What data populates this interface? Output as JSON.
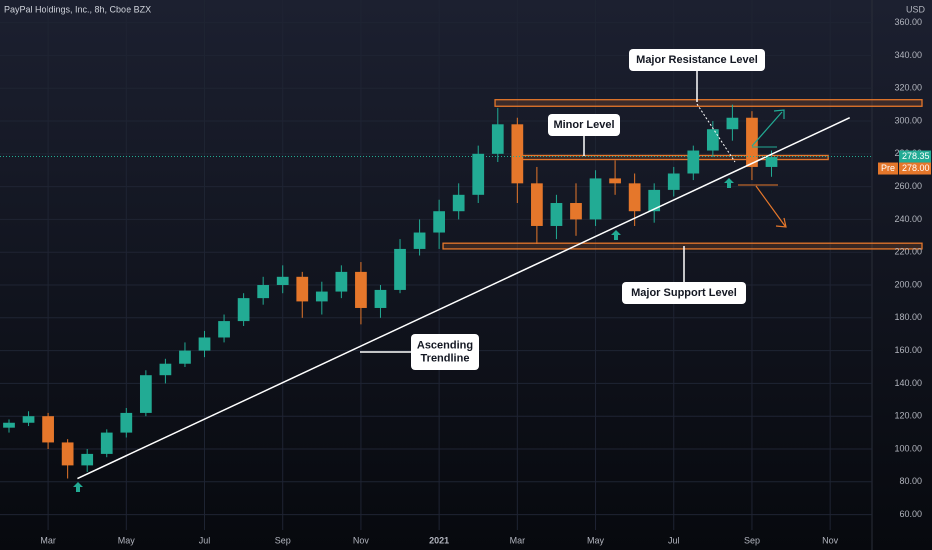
{
  "chart_data": {
    "type": "candlestick",
    "title": "PayPal Holdings, Inc., 8h, Cboe BZX",
    "y_unit": "USD",
    "x": [
      2.0,
      2.5,
      3.0,
      3.5,
      4.0,
      4.5,
      5.0,
      5.5,
      6.0,
      6.5,
      7.0,
      7.5,
      8.0,
      8.5,
      9.0,
      9.5,
      10.0,
      10.5,
      11.0,
      11.5,
      12.0,
      12.5,
      13.0,
      13.5,
      14.0,
      14.5,
      15.0,
      15.5,
      16.0,
      16.5,
      17.0,
      17.5,
      18.0,
      18.5,
      19.0,
      19.5,
      20.0,
      20.5,
      21.0,
      21.5
    ],
    "open": [
      113,
      116,
      120,
      104,
      90,
      97,
      110,
      122,
      145,
      152,
      160,
      168,
      178,
      192,
      200,
      205,
      190,
      196,
      208,
      186,
      197,
      222,
      232,
      245,
      255,
      280,
      298,
      262,
      236,
      250,
      240,
      265,
      262,
      245,
      258,
      268,
      282,
      295,
      302,
      272
    ],
    "high": [
      118,
      123,
      122,
      106,
      100,
      112,
      125,
      148,
      155,
      165,
      172,
      182,
      195,
      205,
      212,
      208,
      202,
      212,
      214,
      200,
      228,
      240,
      252,
      262,
      285,
      308,
      302,
      272,
      255,
      262,
      270,
      276,
      268,
      262,
      272,
      285,
      300,
      310,
      306,
      282
    ],
    "low": [
      110,
      114,
      100,
      82,
      86,
      95,
      107,
      120,
      140,
      150,
      156,
      165,
      175,
      188,
      195,
      180,
      182,
      192,
      176,
      180,
      195,
      218,
      222,
      240,
      250,
      275,
      250,
      225,
      228,
      230,
      236,
      255,
      236,
      238,
      254,
      264,
      278,
      288,
      264,
      266
    ],
    "close": [
      116,
      120,
      104,
      90,
      97,
      110,
      122,
      145,
      152,
      160,
      168,
      178,
      192,
      200,
      205,
      190,
      196,
      208,
      186,
      197,
      222,
      232,
      245,
      255,
      280,
      298,
      262,
      236,
      250,
      240,
      265,
      262,
      245,
      258,
      268,
      282,
      295,
      302,
      272,
      278
    ],
    "up_color": "#22ab94",
    "down_color": "#e5772b",
    "xlim": [
      1.77,
      24.07
    ],
    "xticks": [
      {
        "value": 3,
        "label": "Mar"
      },
      {
        "value": 5,
        "label": "May"
      },
      {
        "value": 7,
        "label": "Jul"
      },
      {
        "value": 9,
        "label": "Sep"
      },
      {
        "value": 11,
        "label": "Nov"
      },
      {
        "value": 13,
        "label": "2021"
      },
      {
        "value": 15,
        "label": "Mar"
      },
      {
        "value": 17,
        "label": "May"
      },
      {
        "value": 19,
        "label": "Jul"
      },
      {
        "value": 21,
        "label": "Sep"
      },
      {
        "value": 23,
        "label": "Nov"
      }
    ],
    "ylim": [
      50.6,
      373.8
    ],
    "yticks": [
      {
        "value": 60,
        "label": "60.00"
      },
      {
        "value": 80,
        "label": "80.00"
      },
      {
        "value": 100,
        "label": "100.00"
      },
      {
        "value": 120,
        "label": "120.00"
      },
      {
        "value": 140,
        "label": "140.00"
      },
      {
        "value": 160,
        "label": "160.00"
      },
      {
        "value": 180,
        "label": "180.00"
      },
      {
        "value": 200,
        "label": "200.00"
      },
      {
        "value": 220,
        "label": "220.00"
      },
      {
        "value": 240,
        "label": "240.00"
      },
      {
        "value": 260,
        "label": "260.00"
      },
      {
        "value": 280,
        "label": "280.00"
      },
      {
        "value": 300,
        "label": "300.00"
      },
      {
        "value": 320,
        "label": "320.00"
      },
      {
        "value": 340,
        "label": "340.00"
      },
      {
        "value": 360,
        "label": "360.00"
      }
    ],
    "grid": true,
    "levels": [
      {
        "name": "Major Resistance Level",
        "range": [
          309,
          313
        ],
        "x": [
          14.43,
          24.07
        ]
      },
      {
        "name": "Minor Level",
        "range": [
          276.5,
          279
        ],
        "x": [
          14.87,
          21.67
        ]
      },
      {
        "name": "Major Support Level",
        "range": [
          222,
          225.5
        ],
        "x": [
          13.1,
          24.07
        ]
      }
    ],
    "trendline": {
      "name": [
        "Ascending",
        "Trendline"
      ],
      "x": [
        3.75,
        23.5
      ],
      "values": [
        82,
        302
      ],
      "color": "#ffffff"
    },
    "last_price": {
      "value": 278.35,
      "label": "278.35"
    },
    "pre_market": {
      "tag": "Pre",
      "value": 278,
      "label": "278.00"
    }
  }
}
